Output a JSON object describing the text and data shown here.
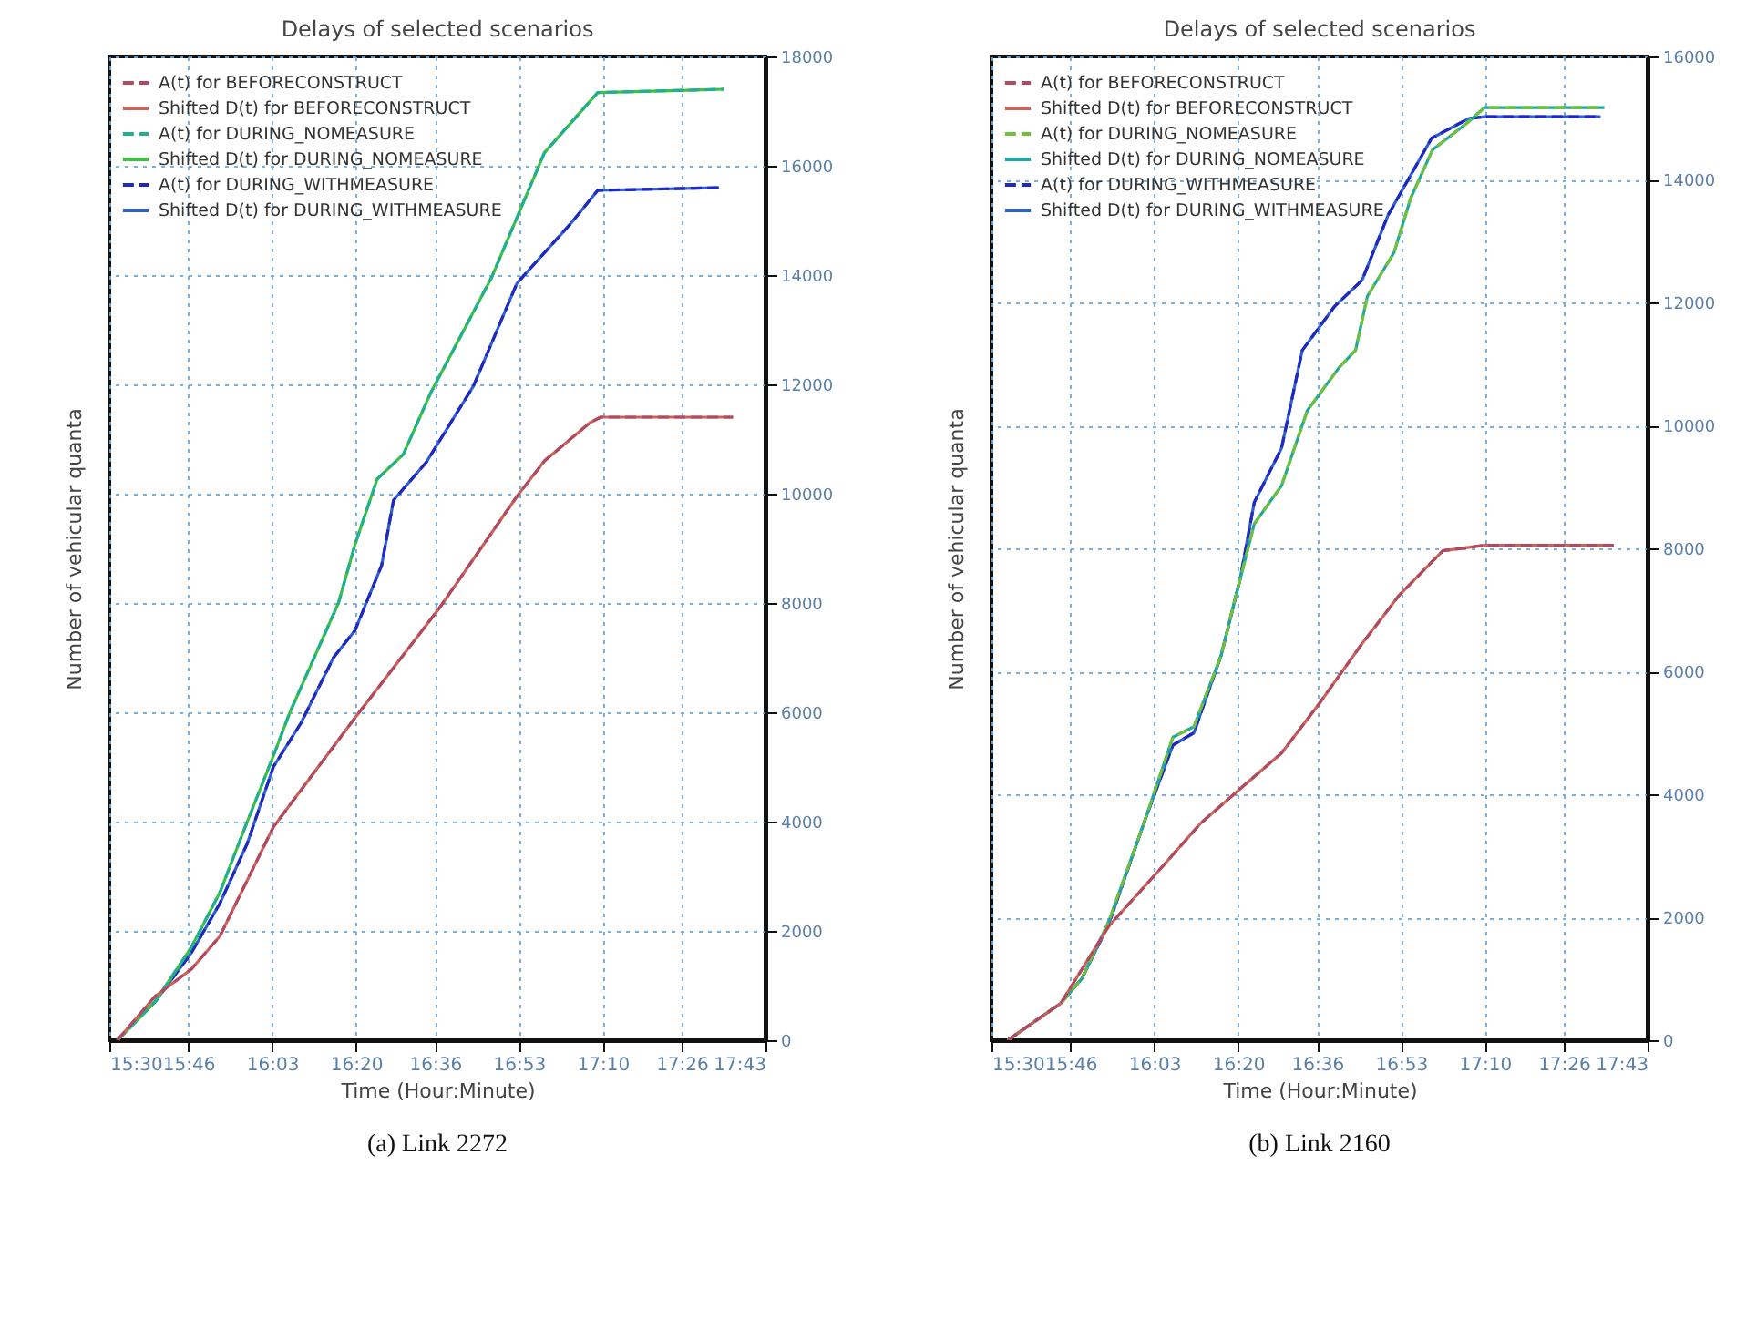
{
  "chart_data": [
    {
      "type": "line",
      "title": "Delays of selected scenarios",
      "xlabel": "Time (Hour:Minute)",
      "ylabel": "Number of vehicular quanta",
      "annotations": [
        "(a) Link 2272"
      ],
      "grid": true,
      "legend": "top left",
      "xlim": [
        15.5,
        17.7167
      ],
      "ylim": [
        0,
        18000
      ],
      "xticks": [
        {
          "value": 15.5,
          "label": "15:30"
        },
        {
          "value": 15.7667,
          "label": "15:46"
        },
        {
          "value": 16.05,
          "label": "16:03"
        },
        {
          "value": 16.3333,
          "label": "16:20"
        },
        {
          "value": 16.6,
          "label": "16:36"
        },
        {
          "value": 16.8833,
          "label": "16:53"
        },
        {
          "value": 17.1667,
          "label": "17:10"
        },
        {
          "value": 17.4333,
          "label": "17:26"
        },
        {
          "value": 17.7167,
          "label": "17:43"
        }
      ],
      "yticks": [
        0,
        2000,
        4000,
        6000,
        8000,
        10000,
        12000,
        14000,
        16000,
        18000
      ],
      "series": [
        {
          "name": "A(t) for BEFORECONSTRUCT",
          "color": "#b04a60",
          "line_style": "dashed",
          "x": [
            15.527,
            15.654,
            15.777,
            15.873,
            16.054,
            16.33,
            16.614,
            16.877,
            16.97,
            17.124,
            17.16,
            17.607
          ],
          "values": [
            0,
            800,
            1300,
            1900,
            3900,
            5900,
            7900,
            9950,
            10600,
            11300,
            11400,
            11400
          ]
        },
        {
          "name": "Shifted D(t) for BEFORECONSTRUCT",
          "color": "#c8645a",
          "line_style": "solid",
          "x": [
            15.527,
            15.654,
            15.777,
            15.873,
            16.054,
            16.33,
            16.614,
            16.877,
            16.97,
            17.124,
            17.16,
            17.607
          ],
          "values": [
            0,
            800,
            1300,
            1900,
            3900,
            5900,
            7900,
            9950,
            10600,
            11300,
            11400,
            11400
          ]
        },
        {
          "name": "A(t) for DURING_NOMEASURE",
          "color": "#20b090",
          "line_style": "dashed",
          "x": [
            15.527,
            15.654,
            15.777,
            15.873,
            15.966,
            16.054,
            16.11,
            16.274,
            16.33,
            16.405,
            16.493,
            16.586,
            16.79,
            16.97,
            17.15,
            17.575
          ],
          "values": [
            0,
            700,
            1700,
            2700,
            4000,
            5200,
            6000,
            8000,
            9070,
            10270,
            10720,
            11850,
            13940,
            16240,
            17340,
            17400
          ]
        },
        {
          "name": "Shifted D(t) for DURING_NOMEASURE",
          "color": "#40c040",
          "line_style": "solid",
          "x": [
            15.527,
            15.654,
            15.777,
            15.873,
            15.966,
            16.054,
            16.11,
            16.274,
            16.33,
            16.405,
            16.493,
            16.586,
            16.79,
            16.97,
            17.15,
            17.575
          ],
          "values": [
            0,
            700,
            1700,
            2700,
            4000,
            5200,
            6000,
            8000,
            9070,
            10270,
            10720,
            11850,
            13940,
            16240,
            17340,
            17400
          ]
        },
        {
          "name": "A(t) for DURING_WITHMEASURE",
          "color": "#2028c0",
          "line_style": "dashed",
          "x": [
            15.527,
            15.654,
            15.777,
            15.873,
            15.966,
            16.054,
            16.147,
            16.257,
            16.33,
            16.42,
            16.46,
            16.57,
            16.73,
            16.877,
            17.06,
            17.15,
            17.56
          ],
          "values": [
            0,
            700,
            1600,
            2500,
            3600,
            5000,
            5800,
            7000,
            7500,
            8690,
            9880,
            10570,
            11970,
            13850,
            14950,
            15550,
            15600
          ]
        },
        {
          "name": "Shifted D(t) for DURING_WITHMEASURE",
          "color": "#3060d0",
          "line_style": "solid",
          "x": [
            15.527,
            15.654,
            15.777,
            15.873,
            15.966,
            16.054,
            16.147,
            16.257,
            16.33,
            16.42,
            16.46,
            16.57,
            16.73,
            16.877,
            17.06,
            17.15,
            17.56
          ],
          "values": [
            0,
            700,
            1600,
            2500,
            3600,
            5000,
            5800,
            7000,
            7500,
            8690,
            9880,
            10570,
            11970,
            13850,
            14950,
            15550,
            15600
          ]
        }
      ]
    },
    {
      "type": "line",
      "title": "Delays of selected scenarios",
      "xlabel": "Time (Hour:Minute)",
      "ylabel": "Number of vehicular quanta",
      "annotations": [
        "(b) Link 2160"
      ],
      "grid": true,
      "legend": "top left",
      "xlim": [
        15.5,
        17.7167
      ],
      "ylim": [
        0,
        16000
      ],
      "xticks": [
        {
          "value": 15.5,
          "label": "15:30"
        },
        {
          "value": 15.7667,
          "label": "15:46"
        },
        {
          "value": 16.05,
          "label": "16:03"
        },
        {
          "value": 16.3333,
          "label": "16:20"
        },
        {
          "value": 16.6,
          "label": "16:36"
        },
        {
          "value": 16.8833,
          "label": "16:53"
        },
        {
          "value": 17.1667,
          "label": "17:10"
        },
        {
          "value": 17.4333,
          "label": "17:26"
        },
        {
          "value": 17.7167,
          "label": "17:43"
        }
      ],
      "yticks": [
        0,
        2000,
        4000,
        6000,
        8000,
        10000,
        12000,
        14000,
        16000
      ],
      "series": [
        {
          "name": "A(t) for BEFORECONSTRUCT",
          "color": "#b04a60",
          "line_style": "dashed",
          "x": [
            15.555,
            15.734,
            15.897,
            16.06,
            16.207,
            16.333,
            16.48,
            16.605,
            16.752,
            16.878,
            17.025,
            17.166,
            17.602
          ],
          "values": [
            0,
            600,
            1860,
            2730,
            3530,
            4060,
            4670,
            5460,
            6450,
            7240,
            7960,
            8050,
            8050
          ]
        },
        {
          "name": "Shifted D(t) for BEFORECONSTRUCT",
          "color": "#c8645a",
          "line_style": "solid",
          "x": [
            15.555,
            15.734,
            15.897,
            16.06,
            16.207,
            16.333,
            16.48,
            16.605,
            16.752,
            16.878,
            17.025,
            17.166,
            17.602
          ],
          "values": [
            0,
            600,
            1860,
            2730,
            3530,
            4060,
            4670,
            5460,
            6450,
            7240,
            7960,
            8050,
            8050
          ]
        },
        {
          "name": "A(t) for DURING_NOMEASURE",
          "color": "#70c040",
          "line_style": "dashed",
          "x": [
            15.555,
            15.734,
            15.805,
            15.897,
            16.02,
            16.113,
            16.184,
            16.276,
            16.34,
            16.388,
            16.48,
            16.567,
            16.676,
            16.73,
            16.77,
            16.86,
            16.916,
            16.99,
            17.11,
            17.166,
            17.57
          ],
          "values": [
            0,
            600,
            1000,
            1940,
            3600,
            4930,
            5100,
            6260,
            7500,
            8400,
            9020,
            10240,
            10950,
            11220,
            12100,
            12810,
            13690,
            14480,
            14930,
            15170,
            15170
          ]
        },
        {
          "name": "Shifted D(t) for DURING_NOMEASURE",
          "color": "#20a8a0",
          "line_style": "solid",
          "x": [
            15.555,
            15.734,
            15.805,
            15.897,
            16.02,
            16.113,
            16.184,
            16.276,
            16.34,
            16.388,
            16.48,
            16.567,
            16.676,
            16.73,
            16.77,
            16.86,
            16.916,
            16.99,
            17.11,
            17.166,
            17.57
          ],
          "values": [
            0,
            600,
            1000,
            1940,
            3600,
            4930,
            5100,
            6260,
            7500,
            8400,
            9020,
            10240,
            10950,
            11220,
            12100,
            12810,
            13690,
            14480,
            14930,
            15170,
            15170
          ]
        },
        {
          "name": "A(t) for DURING_WITHMEASURE",
          "color": "#2028c0",
          "line_style": "dashed",
          "x": [
            15.555,
            15.734,
            15.805,
            15.897,
            16.02,
            16.113,
            16.184,
            16.276,
            16.34,
            16.388,
            16.48,
            16.55,
            16.66,
            16.752,
            16.84,
            16.987,
            17.112,
            17.166,
            17.558
          ],
          "values": [
            0,
            600,
            1000,
            1900,
            3600,
            4800,
            5000,
            6260,
            7500,
            8750,
            9630,
            11220,
            11940,
            12360,
            13420,
            14670,
            14990,
            15020,
            15020
          ]
        },
        {
          "name": "Shifted D(t) for DURING_WITHMEASURE",
          "color": "#3060d0",
          "line_style": "solid",
          "x": [
            15.555,
            15.734,
            15.805,
            15.897,
            16.02,
            16.113,
            16.184,
            16.276,
            16.34,
            16.388,
            16.48,
            16.55,
            16.66,
            16.752,
            16.84,
            16.987,
            17.112,
            17.166,
            17.558
          ],
          "values": [
            0,
            600,
            1000,
            1900,
            3600,
            4800,
            5000,
            6260,
            7500,
            8750,
            9630,
            11220,
            11940,
            12360,
            13420,
            14670,
            14990,
            15020,
            15020
          ]
        }
      ]
    }
  ]
}
